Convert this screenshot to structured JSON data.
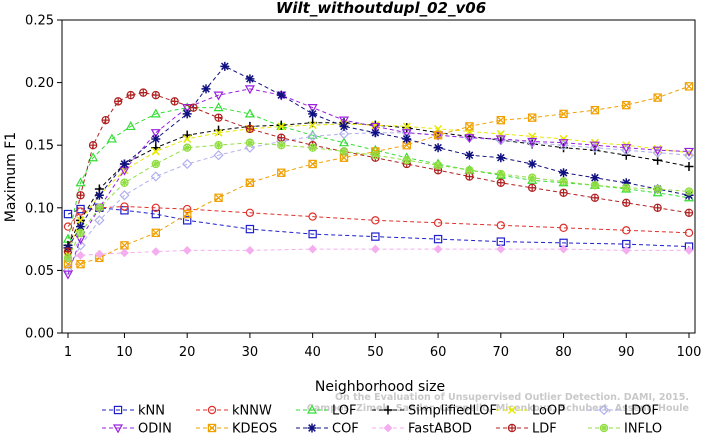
{
  "chart_data": {
    "type": "line",
    "title": "Wilt_withoutdupl_02_v06",
    "xlabel": "Neighborhood size",
    "ylabel": "Maximum F1",
    "xlim": [
      1,
      100
    ],
    "ylim": [
      0,
      0.25
    ],
    "xticks": [
      1,
      10,
      20,
      30,
      40,
      50,
      60,
      70,
      80,
      90,
      100
    ],
    "yticks": [
      "0.00",
      "0.05",
      "0.10",
      "0.15",
      "0.20",
      "0.25"
    ],
    "grid": false,
    "legend_position": "bottom",
    "watermark": [
      "Campos, Zimek, Sander, Campello, Micenkova, Schubert, Assent, Houle",
      "On the Evaluation of Unsupervised Outlier Detection. DAMI, 2015."
    ],
    "series": [
      {
        "name": "kNN",
        "color": "#1f1fcc",
        "marker": "square",
        "x": [
          1,
          3,
          6,
          10,
          15,
          20,
          30,
          40,
          50,
          60,
          70,
          80,
          90,
          100
        ],
        "y": [
          0.095,
          0.099,
          0.1,
          0.098,
          0.095,
          0.09,
          0.083,
          0.079,
          0.077,
          0.075,
          0.073,
          0.072,
          0.071,
          0.069
        ]
      },
      {
        "name": "kNNW",
        "color": "#e0302a",
        "marker": "circle",
        "x": [
          1,
          3,
          6,
          10,
          15,
          20,
          30,
          40,
          50,
          60,
          70,
          80,
          90,
          100
        ],
        "y": [
          0.085,
          0.097,
          0.1,
          0.101,
          0.1,
          0.099,
          0.096,
          0.093,
          0.09,
          0.088,
          0.086,
          0.084,
          0.082,
          0.08
        ]
      },
      {
        "name": "LOF",
        "color": "#33dd33",
        "marker": "triangle",
        "x": [
          1,
          3,
          5,
          8,
          11,
          15,
          20,
          25,
          30,
          35,
          40,
          45,
          50,
          55,
          60,
          65,
          70,
          75,
          80,
          85,
          90,
          95,
          100
        ],
        "y": [
          0.075,
          0.12,
          0.14,
          0.155,
          0.165,
          0.175,
          0.18,
          0.18,
          0.175,
          0.165,
          0.158,
          0.152,
          0.146,
          0.14,
          0.135,
          0.13,
          0.126,
          0.122,
          0.12,
          0.118,
          0.115,
          0.112,
          0.108
        ]
      },
      {
        "name": "SimplifiedLOF",
        "color": "#000000",
        "marker": "plus",
        "x": [
          1,
          3,
          6,
          10,
          15,
          20,
          25,
          30,
          35,
          40,
          45,
          50,
          55,
          60,
          65,
          70,
          75,
          80,
          85,
          90,
          95,
          100
        ],
        "y": [
          0.07,
          0.09,
          0.115,
          0.135,
          0.148,
          0.158,
          0.162,
          0.165,
          0.166,
          0.168,
          0.168,
          0.166,
          0.164,
          0.16,
          0.157,
          0.154,
          0.151,
          0.148,
          0.146,
          0.142,
          0.138,
          0.133
        ]
      },
      {
        "name": "LoOP",
        "color": "#e8e800",
        "marker": "cross",
        "x": [
          1,
          3,
          6,
          10,
          15,
          20,
          25,
          30,
          35,
          40,
          45,
          50,
          55,
          60,
          65,
          70,
          75,
          80,
          85,
          90,
          95,
          100
        ],
        "y": [
          0.065,
          0.09,
          0.11,
          0.13,
          0.145,
          0.155,
          0.16,
          0.163,
          0.165,
          0.166,
          0.167,
          0.166,
          0.165,
          0.163,
          0.161,
          0.159,
          0.157,
          0.155,
          0.152,
          0.15,
          0.147,
          0.144
        ]
      },
      {
        "name": "LDOF",
        "color": "#b0b0ee",
        "marker": "diamond",
        "x": [
          1,
          3,
          6,
          10,
          15,
          20,
          25,
          30,
          35,
          40,
          45,
          50,
          55,
          60,
          65,
          70,
          75,
          80,
          85,
          90,
          95,
          100
        ],
        "y": [
          0.05,
          0.07,
          0.09,
          0.11,
          0.125,
          0.135,
          0.142,
          0.148,
          0.153,
          0.157,
          0.159,
          0.16,
          0.16,
          0.158,
          0.156,
          0.154,
          0.152,
          0.15,
          0.148,
          0.146,
          0.144,
          0.142
        ]
      },
      {
        "name": "ODIN",
        "color": "#9a20e0",
        "marker": "triangle-down",
        "x": [
          1,
          3,
          6,
          10,
          15,
          20,
          25,
          30,
          35,
          40,
          45,
          50,
          55,
          60,
          65,
          70,
          75,
          80,
          85,
          90,
          95,
          100
        ],
        "y": [
          0.047,
          0.075,
          0.1,
          0.13,
          0.16,
          0.18,
          0.19,
          0.195,
          0.19,
          0.18,
          0.17,
          0.165,
          0.16,
          0.158,
          0.156,
          0.155,
          0.153,
          0.152,
          0.15,
          0.148,
          0.146,
          0.145
        ]
      },
      {
        "name": "KDEOS",
        "color": "#f0a000",
        "marker": "square-x",
        "x": [
          1,
          3,
          6,
          10,
          15,
          20,
          25,
          30,
          35,
          40,
          45,
          50,
          55,
          60,
          65,
          70,
          75,
          80,
          85,
          90,
          95,
          100
        ],
        "y": [
          0.055,
          0.055,
          0.06,
          0.07,
          0.08,
          0.095,
          0.108,
          0.12,
          0.128,
          0.135,
          0.14,
          0.145,
          0.15,
          0.158,
          0.165,
          0.17,
          0.172,
          0.175,
          0.178,
          0.182,
          0.188,
          0.197
        ]
      },
      {
        "name": "COF",
        "color": "#101080",
        "marker": "asterisk",
        "x": [
          1,
          3,
          6,
          10,
          15,
          20,
          23,
          26,
          30,
          35,
          40,
          45,
          50,
          55,
          60,
          65,
          70,
          75,
          80,
          85,
          90,
          95,
          100
        ],
        "y": [
          0.068,
          0.085,
          0.11,
          0.135,
          0.155,
          0.175,
          0.195,
          0.213,
          0.203,
          0.19,
          0.175,
          0.165,
          0.16,
          0.155,
          0.148,
          0.142,
          0.14,
          0.135,
          0.128,
          0.124,
          0.12,
          0.115,
          0.11
        ]
      },
      {
        "name": "FastABOD",
        "color": "#f4aef0",
        "marker": "diamond-solid",
        "x": [
          1,
          3,
          6,
          10,
          15,
          20,
          30,
          40,
          50,
          60,
          70,
          80,
          90,
          100
        ],
        "y": [
          0.06,
          0.062,
          0.063,
          0.064,
          0.065,
          0.066,
          0.066,
          0.067,
          0.067,
          0.067,
          0.067,
          0.067,
          0.066,
          0.066
        ]
      },
      {
        "name": "LDF",
        "color": "#b02020",
        "marker": "circle-plus",
        "x": [
          1,
          3,
          5,
          7,
          9,
          11,
          13,
          15,
          18,
          21,
          25,
          30,
          35,
          40,
          45,
          50,
          55,
          60,
          65,
          70,
          75,
          80,
          85,
          90,
          95,
          100
        ],
        "y": [
          0.065,
          0.11,
          0.15,
          0.17,
          0.185,
          0.19,
          0.192,
          0.19,
          0.185,
          0.18,
          0.172,
          0.163,
          0.156,
          0.15,
          0.145,
          0.14,
          0.135,
          0.13,
          0.125,
          0.12,
          0.116,
          0.112,
          0.108,
          0.104,
          0.1,
          0.096
        ]
      },
      {
        "name": "INFLO",
        "color": "#90dd40",
        "marker": "circle-star",
        "x": [
          1,
          3,
          6,
          10,
          15,
          20,
          25,
          30,
          35,
          40,
          45,
          50,
          55,
          60,
          65,
          70,
          75,
          80,
          85,
          90,
          95,
          100
        ],
        "y": [
          0.06,
          0.08,
          0.1,
          0.12,
          0.135,
          0.148,
          0.15,
          0.152,
          0.15,
          0.148,
          0.145,
          0.142,
          0.138,
          0.134,
          0.13,
          0.127,
          0.124,
          0.121,
          0.118,
          0.116,
          0.115,
          0.113
        ]
      }
    ]
  }
}
